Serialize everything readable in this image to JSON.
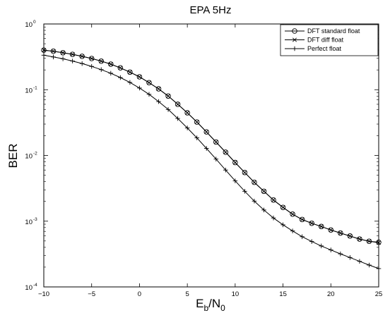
{
  "chart_data": {
    "type": "line",
    "title": "EPA 5Hz",
    "xlabel": {
      "main": "E",
      "sub1": "b",
      "mid": "/N",
      "sub2": "0"
    },
    "ylabel": "BER",
    "xlim": [
      -10,
      25
    ],
    "ylim": [
      0.0001,
      1
    ],
    "yscale": "log",
    "grid": false,
    "legend_position": "top-right",
    "x_ticks": [
      -10,
      -5,
      0,
      5,
      10,
      15,
      20,
      25
    ],
    "x_tick_labels": [
      "−10",
      "−5",
      "0",
      "5",
      "10",
      "15",
      "20",
      "25"
    ],
    "y_ticks": [
      {
        "value": 1,
        "base": "10",
        "exp": "0"
      },
      {
        "value": 0.1,
        "base": "10",
        "exp": "-1"
      },
      {
        "value": 0.01,
        "base": "10",
        "exp": "-2"
      },
      {
        "value": 0.001,
        "base": "10",
        "exp": "-3"
      },
      {
        "value": 0.0001,
        "base": "10",
        "exp": "-4"
      }
    ],
    "x": [
      -10,
      -9,
      -8,
      -7,
      -6,
      -5,
      -4,
      -3,
      -2,
      -1,
      0,
      1,
      2,
      3,
      4,
      5,
      6,
      7,
      8,
      9,
      10,
      11,
      12,
      13,
      14,
      15,
      16,
      17,
      18,
      19,
      20,
      21,
      22,
      23,
      24,
      25
    ],
    "series": [
      {
        "name": "DFT standard float",
        "marker": "circle",
        "color": "#000000",
        "values": [
          0.4,
          0.385,
          0.365,
          0.345,
          0.322,
          0.298,
          0.272,
          0.245,
          0.215,
          0.185,
          0.157,
          0.128,
          0.103,
          0.08,
          0.06,
          0.0445,
          0.0322,
          0.0228,
          0.016,
          0.0112,
          0.0078,
          0.0055,
          0.0039,
          0.00285,
          0.0021,
          0.00162,
          0.00128,
          0.00106,
          0.00093,
          0.00083,
          0.000735,
          0.00066,
          0.000595,
          0.000535,
          0.000495,
          0.000478
        ]
      },
      {
        "name": "DFT diff float",
        "marker": "x",
        "color": "#000000",
        "values": [
          0.4,
          0.385,
          0.365,
          0.345,
          0.322,
          0.298,
          0.272,
          0.245,
          0.215,
          0.185,
          0.157,
          0.128,
          0.103,
          0.08,
          0.06,
          0.0445,
          0.0322,
          0.0228,
          0.016,
          0.0112,
          0.0078,
          0.0055,
          0.0039,
          0.00285,
          0.0021,
          0.00162,
          0.00128,
          0.00106,
          0.00093,
          0.00083,
          0.000735,
          0.00066,
          0.000595,
          0.000535,
          0.000495,
          0.00047
        ]
      },
      {
        "name": "Perfect float",
        "marker": "plus",
        "color": "#000000",
        "values": [
          0.335,
          0.315,
          0.295,
          0.273,
          0.25,
          0.226,
          0.202,
          0.178,
          0.153,
          0.129,
          0.106,
          0.085,
          0.066,
          0.05,
          0.0365,
          0.0262,
          0.0185,
          0.0128,
          0.0088,
          0.006,
          0.0041,
          0.00285,
          0.00202,
          0.00148,
          0.00112,
          0.00088,
          0.00071,
          0.00058,
          0.00049,
          0.00042,
          0.000365,
          0.000318,
          0.00028,
          0.000245,
          0.000215,
          0.00019
        ]
      }
    ]
  }
}
